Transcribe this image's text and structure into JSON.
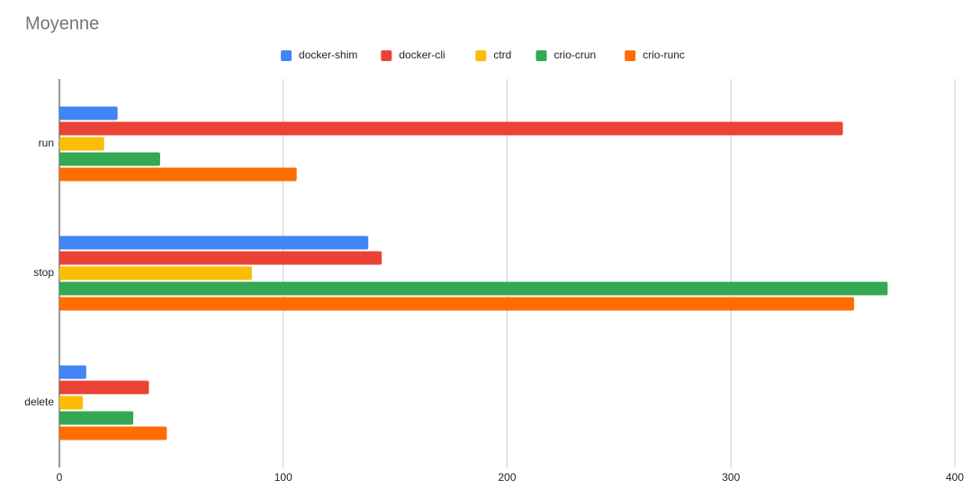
{
  "chart_data": {
    "type": "bar",
    "orientation": "horizontal",
    "title": "Moyenne",
    "categories": [
      "run",
      "stop",
      "delete"
    ],
    "series": [
      {
        "name": "docker-shim",
        "color": "#4285f4",
        "values": [
          26,
          138,
          12
        ]
      },
      {
        "name": "docker-cli",
        "color": "#ea4335",
        "values": [
          350,
          144,
          40
        ]
      },
      {
        "name": "ctrd",
        "color": "#fbbc04",
        "values": [
          20,
          86,
          10.5
        ]
      },
      {
        "name": "crio-crun",
        "color": "#34a853",
        "values": [
          45,
          370,
          33
        ]
      },
      {
        "name": "crio-runc",
        "color": "#ff6d01",
        "values": [
          106,
          355,
          48
        ]
      }
    ],
    "xlim": [
      0,
      400
    ],
    "xticks": [
      0,
      100,
      200,
      300,
      400
    ],
    "grid": true,
    "legend": "top"
  }
}
